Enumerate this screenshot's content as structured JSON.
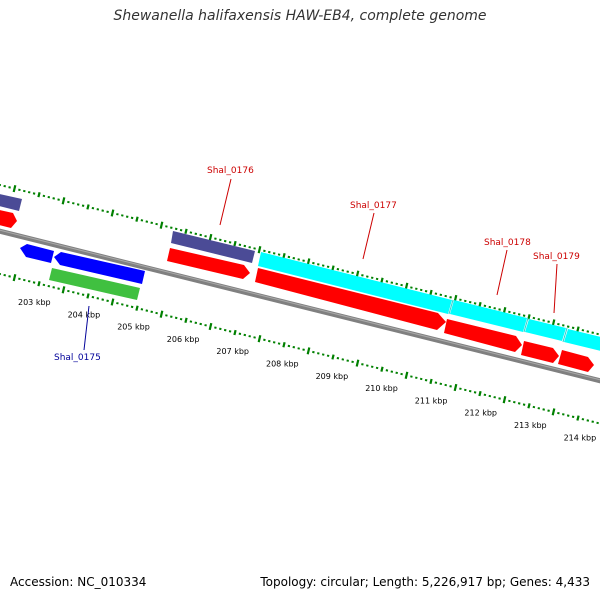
{
  "header": {
    "title": "Shewanella halifaxensis HAW-EB4, complete genome"
  },
  "footer": {
    "accession": "Accession: NC_010334",
    "summary": "Topology: circular; Length: 5,226,917 bp; Genes: 4,433"
  },
  "colors": {
    "backbone": "#808080",
    "tick": "#008000",
    "red_gene": "#ff0000",
    "blue_gene": "#0000ff",
    "navy_gene": "#4b4b96",
    "green_gene": "#40c040",
    "cyan_gene": "#00ffff",
    "label_red": "#cc0000",
    "label_blue": "#000099"
  },
  "scale": {
    "unit": "kbp",
    "labels": [
      "203 kbp",
      "204 kbp",
      "205 kbp",
      "206 kbp",
      "207 kbp",
      "208 kbp",
      "209 kbp",
      "210 kbp",
      "211 kbp",
      "212 kbp",
      "213 kbp",
      "214 kbp"
    ]
  },
  "genes": {
    "shal_0175": "Shal_0175",
    "shal_0176": "Shal_0176",
    "shal_0177": "Shal_0177",
    "shal_0178": "Shal_0178",
    "shal_0179": "Shal_0179"
  }
}
